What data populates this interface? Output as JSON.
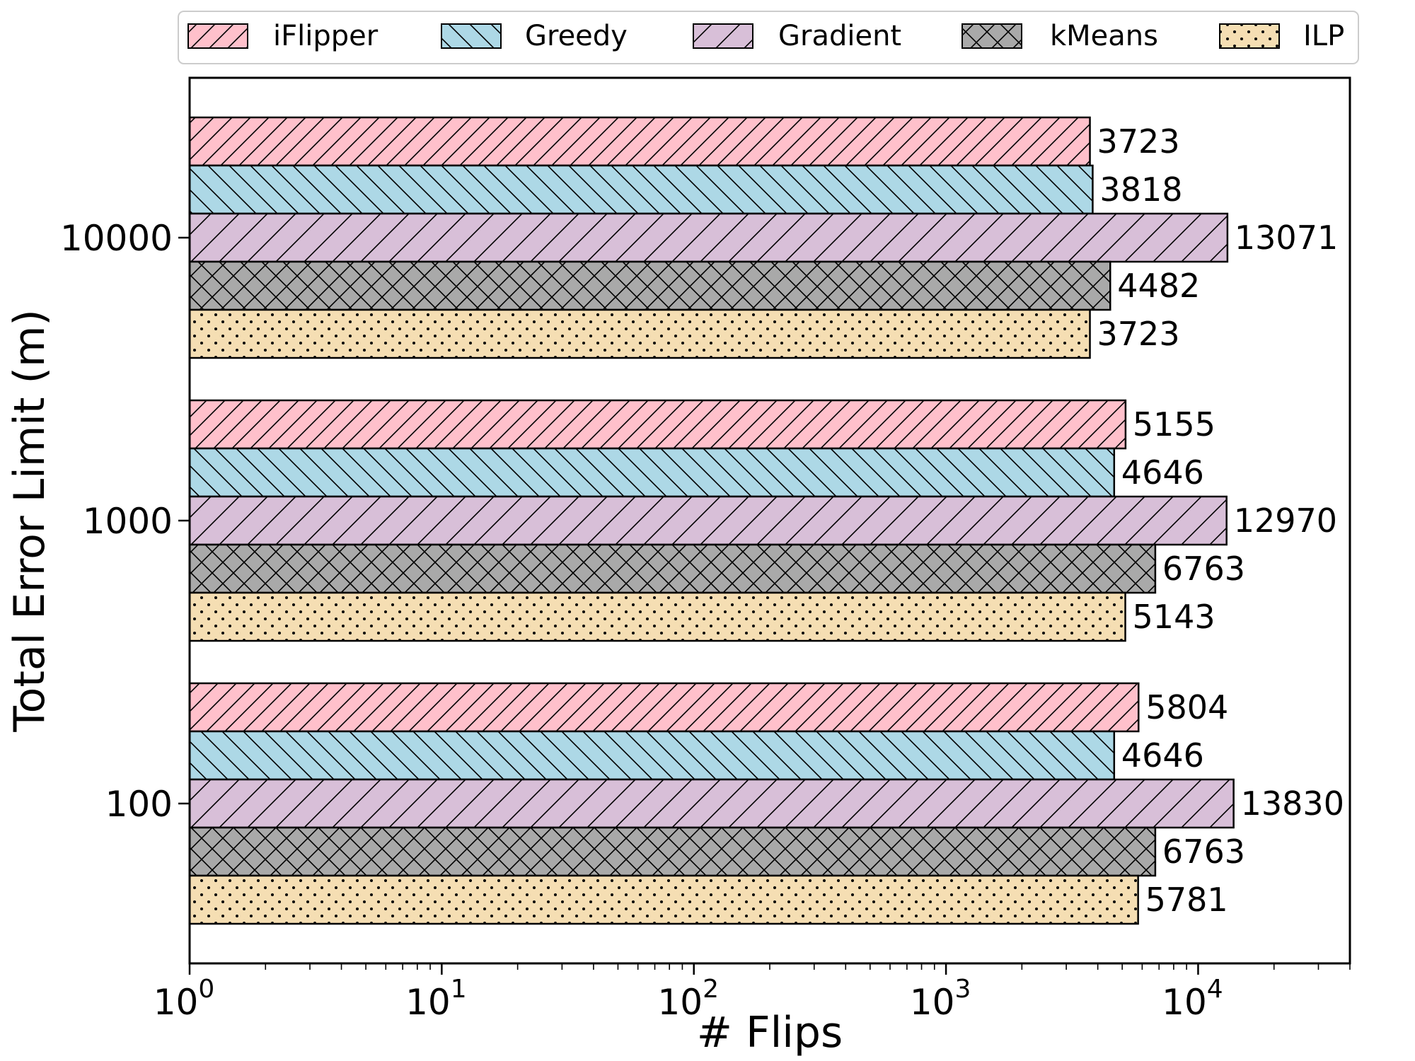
{
  "chart_data": {
    "type": "bar",
    "orientation": "horizontal",
    "xlabel": "# Flips",
    "ylabel": "Total Error Limit (m)",
    "xscale": "log",
    "xlim": [
      1,
      40000
    ],
    "x_ticks": [
      {
        "base": "10",
        "exp": "0",
        "value": 1
      },
      {
        "base": "10",
        "exp": "1",
        "value": 10
      },
      {
        "base": "10",
        "exp": "2",
        "value": 100
      },
      {
        "base": "10",
        "exp": "3",
        "value": 1000
      },
      {
        "base": "10",
        "exp": "4",
        "value": 10000
      }
    ],
    "categories": [
      "10000",
      "1000",
      "100"
    ],
    "legend_position": "top",
    "grid": false,
    "series": [
      {
        "name": "iFlipper",
        "values": [
          3723,
          5155,
          5804
        ],
        "labels": [
          "3723",
          "5155",
          "5804"
        ],
        "color": "#ffc0cb",
        "hatch": "forward-diagonal"
      },
      {
        "name": "Greedy",
        "values": [
          3818,
          4646,
          4646
        ],
        "labels": [
          "3818",
          "4646",
          "4646"
        ],
        "color": "#add8e6",
        "hatch": "back-diagonal"
      },
      {
        "name": "Gradient",
        "values": [
          13071,
          12970,
          13830
        ],
        "labels": [
          "13071",
          "12970",
          "13830"
        ],
        "color": "#d8bfd8",
        "hatch": "sparse-forward-diagonal"
      },
      {
        "name": "kMeans",
        "values": [
          4482,
          6763,
          6763
        ],
        "labels": [
          "4482",
          "6763",
          "6763"
        ],
        "color": "#a9a9a9",
        "hatch": "crosshatch"
      },
      {
        "name": "ILP",
        "values": [
          3723,
          5143,
          5781
        ],
        "labels": [
          "3723",
          "5143",
          "5781"
        ],
        "color": "#f5deb3",
        "hatch": "dots"
      }
    ]
  }
}
